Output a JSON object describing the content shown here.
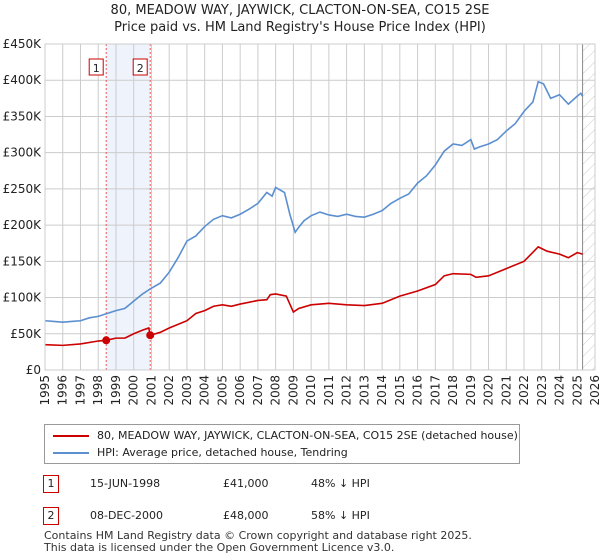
{
  "title_line1": "80, MEADOW WAY, JAYWICK, CLACTON-ON-SEA, CO15 2SE",
  "title_line2": "Price paid vs. HM Land Registry's House Price Index (HPI)",
  "chart_data": {
    "type": "line",
    "xlim": [
      1995,
      2026
    ],
    "ylim": [
      0,
      450000
    ],
    "yticks": [
      {
        "v": 0,
        "label": "£0"
      },
      {
        "v": 50000,
        "label": "£50K"
      },
      {
        "v": 100000,
        "label": "£100K"
      },
      {
        "v": 150000,
        "label": "£150K"
      },
      {
        "v": 200000,
        "label": "£200K"
      },
      {
        "v": 250000,
        "label": "£250K"
      },
      {
        "v": 300000,
        "label": "£300K"
      },
      {
        "v": 350000,
        "label": "£350K"
      },
      {
        "v": 400000,
        "label": "£400K"
      },
      {
        "v": 450000,
        "label": "£450K"
      }
    ],
    "xticks": [
      "1995",
      "1996",
      "1997",
      "1998",
      "1999",
      "2000",
      "2001",
      "2002",
      "2003",
      "2004",
      "2005",
      "2006",
      "2007",
      "2008",
      "2009",
      "2010",
      "2011",
      "2012",
      "2013",
      "2014",
      "2015",
      "2016",
      "2017",
      "2018",
      "2019",
      "2020",
      "2021",
      "2022",
      "2023",
      "2024",
      "2025",
      "2026"
    ],
    "shaded_between_sales": [
      1998.45,
      2000.93
    ],
    "forecast_hatch_from": 2025.3,
    "series": [
      {
        "name": "80, MEADOW WAY, JAYWICK, CLACTON-ON-SEA, CO15 2SE (detached house)",
        "color": "#cc0000",
        "x": [
          1995,
          1996,
          1997,
          1998,
          1998.45,
          1999,
          1999.5,
          2000,
          2000.5,
          2000.85,
          2000.93,
          2001.5,
          2002,
          2003,
          2003.5,
          2004,
          2004.5,
          2005,
          2005.5,
          2006,
          2007,
          2007.5,
          2007.7,
          2008,
          2008.6,
          2009,
          2009.3,
          2010,
          2011,
          2012,
          2013,
          2014,
          2015,
          2016,
          2017,
          2017.5,
          2018,
          2019,
          2019.3,
          2020,
          2021,
          2022,
          2022.8,
          2023.3,
          2024,
          2024.5,
          2025,
          2025.3
        ],
        "y": [
          35000,
          34000,
          36000,
          40000,
          41000,
          44000,
          44000,
          50000,
          55000,
          58000,
          48000,
          52000,
          58000,
          68000,
          78000,
          82000,
          88000,
          90000,
          88000,
          91000,
          96000,
          97000,
          104000,
          105000,
          102000,
          80000,
          85000,
          90000,
          92000,
          90000,
          89000,
          92000,
          102000,
          109000,
          118000,
          130000,
          133000,
          132000,
          128000,
          130000,
          140000,
          150000,
          170000,
          164000,
          160000,
          155000,
          162000,
          160000
        ]
      },
      {
        "name": "HPI: Average price, detached house, Tendring",
        "color": "#5b8fd0",
        "x": [
          1995,
          1995.5,
          1996,
          1996.5,
          1997,
          1997.5,
          1998,
          1998.5,
          1999,
          1999.5,
          2000,
          2000.5,
          2001,
          2001.5,
          2002,
          2002.5,
          2003,
          2003.5,
          2004,
          2004.5,
          2005,
          2005.5,
          2006,
          2006.5,
          2007,
          2007.5,
          2007.8,
          2008,
          2008.5,
          2008.8,
          2009.1,
          2009.3,
          2009.6,
          2010,
          2010.5,
          2011,
          2011.5,
          2012,
          2012.5,
          2013,
          2013.5,
          2014,
          2014.5,
          2015,
          2015.5,
          2016,
          2016.5,
          2017,
          2017.5,
          2018,
          2018.5,
          2019,
          2019.2,
          2019.5,
          2020,
          2020.5,
          2021,
          2021.5,
          2022,
          2022.5,
          2022.8,
          2023.1,
          2023.5,
          2024,
          2024.5,
          2025,
          2025.2,
          2025.3
        ],
        "y": [
          68000,
          67000,
          66000,
          67000,
          68000,
          72000,
          74000,
          78000,
          82000,
          85000,
          95000,
          105000,
          113000,
          120000,
          135000,
          155000,
          178000,
          185000,
          198000,
          208000,
          213000,
          210000,
          215000,
          222000,
          230000,
          245000,
          240000,
          252000,
          245000,
          215000,
          190000,
          197000,
          206000,
          213000,
          218000,
          214000,
          212000,
          215000,
          212000,
          211000,
          215000,
          220000,
          230000,
          237000,
          243000,
          258000,
          268000,
          283000,
          302000,
          312000,
          310000,
          318000,
          305000,
          308000,
          312000,
          318000,
          330000,
          340000,
          357000,
          370000,
          398000,
          395000,
          375000,
          380000,
          367000,
          378000,
          382000,
          378000
        ]
      }
    ],
    "sales": [
      {
        "label": "1",
        "x": 1998.45,
        "y": 41000
      },
      {
        "label": "2",
        "x": 2000.93,
        "y": 48000
      }
    ]
  },
  "legend": {
    "red": "80, MEADOW WAY, JAYWICK, CLACTON-ON-SEA, CO15 2SE (detached house)",
    "blue": "HPI: Average price, detached house, Tendring"
  },
  "transactions": [
    {
      "num": "1",
      "date": "15-JUN-1998",
      "price": "£41,000",
      "hpi": "48% ↓ HPI"
    },
    {
      "num": "2",
      "date": "08-DEC-2000",
      "price": "£48,000",
      "hpi": "58% ↓ HPI"
    }
  ],
  "footer_line1": "Contains HM Land Registry data © Crown copyright and database right 2025.",
  "footer_line2": "This data is licensed under the Open Government Licence v3.0."
}
